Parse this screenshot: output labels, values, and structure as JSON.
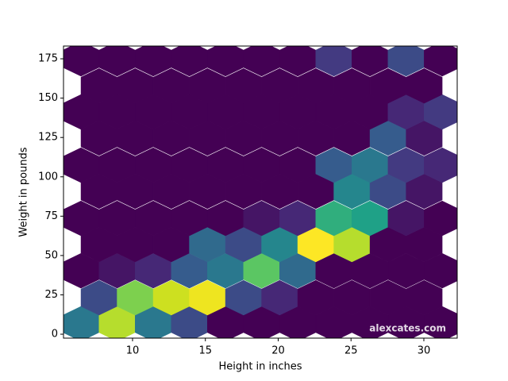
{
  "chart_data": {
    "type": "hexbin",
    "xlabel": "Height in inches",
    "ylabel": "Weight in pounds",
    "watermark": "alexcates.com",
    "xlim": [
      5.26,
      32.29
    ],
    "ylim": [
      -2.5,
      183.1
    ],
    "xticks": [
      10,
      15,
      20,
      25,
      30
    ],
    "yticks": [
      0,
      25,
      50,
      75,
      100,
      125,
      150,
      175
    ],
    "color_map": "viridis",
    "rows": [
      {
        "y": 6.6,
        "x": [
          6.46,
          8.94,
          11.42,
          13.9,
          16.38,
          18.86,
          21.34,
          23.82,
          26.3,
          28.78,
          31.26
        ],
        "values": [
          7,
          16,
          7,
          4,
          0,
          0,
          0,
          0,
          0,
          0,
          0
        ]
      },
      {
        "y": 23.2,
        "x": [
          7.7,
          10.18,
          12.66,
          15.14,
          17.62,
          20.1,
          22.58,
          25.06,
          27.54,
          30.02
        ],
        "values": [
          4,
          14,
          17,
          19,
          4,
          2,
          0,
          0,
          0,
          0
        ]
      },
      {
        "y": 40.3,
        "x": [
          6.46,
          8.94,
          11.42,
          13.9,
          16.38,
          18.86,
          21.34,
          23.82,
          26.3,
          28.78,
          31.26
        ],
        "values": [
          0,
          1,
          2,
          5,
          7,
          13,
          6,
          0,
          0,
          0,
          0
        ]
      },
      {
        "y": 57.0,
        "x": [
          7.7,
          10.18,
          12.66,
          15.14,
          17.62,
          20.1,
          22.58,
          25.06,
          27.54,
          30.02
        ],
        "values": [
          0,
          0,
          0,
          6,
          4,
          8,
          20,
          16,
          0,
          0
        ]
      },
      {
        "y": 73.6,
        "x": [
          6.46,
          8.94,
          11.42,
          13.9,
          16.38,
          18.86,
          21.34,
          23.82,
          26.3,
          28.78,
          31.26
        ],
        "values": [
          0,
          0,
          0,
          0,
          0,
          1,
          2,
          11,
          10,
          1,
          0
        ]
      },
      {
        "y": 90.8,
        "x": [
          7.7,
          10.18,
          12.66,
          15.14,
          17.62,
          20.1,
          22.58,
          25.06,
          27.54,
          30.02
        ],
        "values": [
          0,
          0,
          0,
          0,
          0,
          0,
          0,
          8,
          4,
          1
        ]
      },
      {
        "y": 107.4,
        "x": [
          6.46,
          8.94,
          11.42,
          13.9,
          16.38,
          18.86,
          21.34,
          23.82,
          26.3,
          28.78,
          31.26
        ],
        "values": [
          0,
          0,
          0,
          0,
          0,
          0,
          0,
          5,
          7,
          3,
          2
        ]
      },
      {
        "y": 124.6,
        "x": [
          7.7,
          10.18,
          12.66,
          15.14,
          17.62,
          20.1,
          22.58,
          25.06,
          27.54,
          30.02
        ],
        "values": [
          0,
          0,
          0,
          0,
          0,
          0,
          0,
          0,
          5,
          1
        ]
      },
      {
        "y": 141.2,
        "x": [
          6.46,
          8.94,
          11.42,
          13.9,
          16.38,
          18.86,
          21.34,
          23.82,
          26.3,
          28.78,
          31.26
        ],
        "values": [
          0,
          0,
          0,
          0,
          0,
          0,
          0,
          0,
          0,
          2,
          3
        ]
      },
      {
        "y": 157.8,
        "x": [
          7.7,
          10.18,
          12.66,
          15.14,
          17.62,
          20.1,
          22.58,
          25.06,
          27.54,
          30.02
        ],
        "values": [
          0,
          0,
          0,
          0,
          0,
          0,
          0,
          0,
          0,
          0
        ]
      },
      {
        "y": 175.0,
        "x": [
          6.46,
          8.94,
          11.42,
          13.9,
          16.38,
          18.86,
          21.34,
          23.82,
          26.3,
          28.78,
          31.26
        ],
        "values": [
          0,
          0,
          0,
          0,
          0,
          0,
          0,
          3,
          0,
          4,
          0
        ]
      }
    ]
  }
}
